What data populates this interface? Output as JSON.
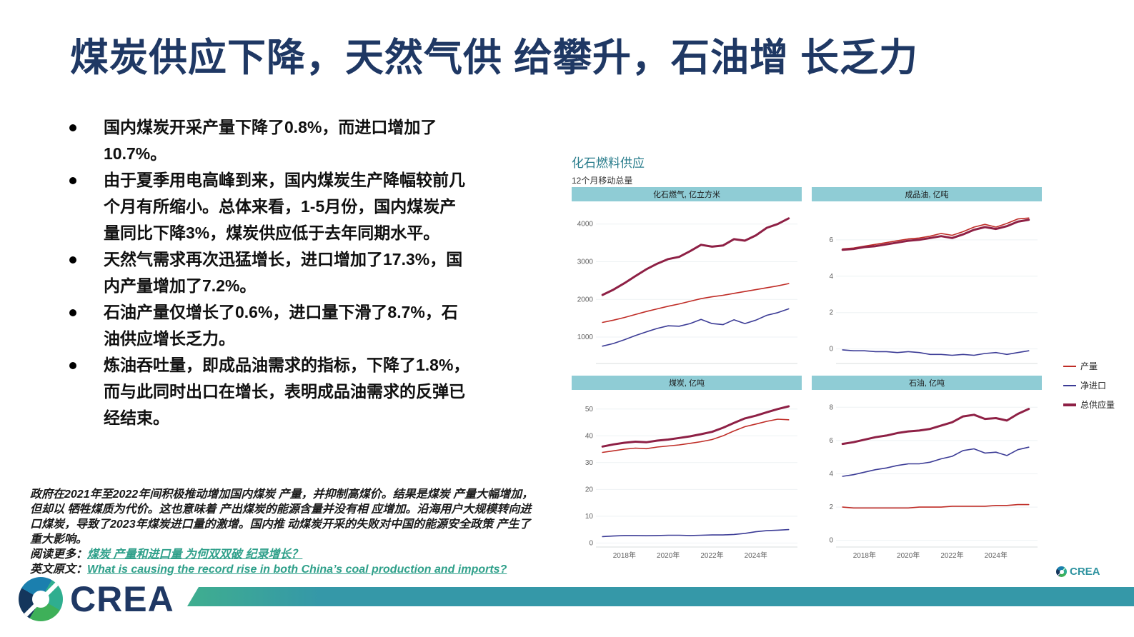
{
  "slide": {
    "title": "煤炭供应下降，天然气供 给攀升，石油增 长乏力",
    "bullets": [
      "国内煤炭开采产量下降了0.8%，而进口增加了10.7%。",
      "由于夏季用电高峰到来，国内煤炭生产降幅较前几个月有所缩小。总体来看，1-5月份，国内煤炭产量同比下降3%，煤炭供应低于去年同期水平。",
      "天然气需求再次迅猛增长，进口增加了17.3%，国内产量增加了7.2%。",
      "石油产量仅增长了0.6%，进口量下滑了8.7%，石油供应增长乏力。",
      "炼油吞吐量，即成品油需求的指标，下降了1.8%，而与此同时出口在增长，表明成品油需求的反弹已经结束。"
    ],
    "footnote": "政府在2021年至2022年间积极推动增加国内煤炭 产量，并抑制高煤价。结果是煤炭 产量大幅增加，但却以 牺牲煤质为代价。这也意味着 产出煤炭的能源含量并没有相 应增加。沿海用户大规模转向进口煤炭，导致了2023年煤炭进口量的激增。国内推 动煤炭开采的失败对中国的能源安全政策 产生了重大影响。",
    "read_more_prefix": "阅读更多：",
    "read_more_link": "煤炭 产量和进口量 为何双双破 纪录增长？",
    "english_prefix": "英文原文：",
    "english_link": "What is causing the record rise in both China’s coal production and imports?"
  },
  "figure": {
    "title": "化石燃料供应",
    "subtitle": "12个月移动总量",
    "brand": "CREA"
  },
  "legend": {
    "items": [
      {
        "label": "产量",
        "color": "#bf2c26",
        "thick": false
      },
      {
        "label": "净进口",
        "color": "#3c3c96",
        "thick": false
      },
      {
        "label": "总供应量",
        "color": "#8e2045",
        "thick": true
      }
    ]
  },
  "logo": {
    "text": "CREA"
  },
  "colors": {
    "title_navy": "#1f3864",
    "chart_title_teal": "#2a7d8c",
    "panel_header_bg": "#8fccd5",
    "link_teal": "#2fa08a",
    "banner_teal": "#3598a8",
    "production_red": "#bf2c26",
    "net_imports_blue": "#3c3c96",
    "total_supply_maroon": "#8e2045"
  },
  "chart_data": [
    {
      "type": "line",
      "title": "化石燃气, 亿立方米",
      "show_x_labels": false,
      "x": [
        2017,
        2017.5,
        2018,
        2018.5,
        2019,
        2019.5,
        2020,
        2020.5,
        2021,
        2021.5,
        2022,
        2022.5,
        2023,
        2023.5,
        2024,
        2024.5,
        2025,
        2025.5
      ],
      "xlim": [
        2016.7,
        2025.9
      ],
      "ylim": [
        300,
        4450
      ],
      "yticks": [
        1000,
        2000,
        3000,
        4000
      ],
      "xticks": [
        2018,
        2020,
        2022,
        2024
      ],
      "xtick_labels": [
        "2018年",
        "2020年",
        "2022年",
        "2024年"
      ],
      "series": [
        {
          "name": "产量",
          "color": "#bf2c26",
          "width": 1.6,
          "values": [
            1390,
            1450,
            1520,
            1600,
            1680,
            1750,
            1820,
            1880,
            1950,
            2020,
            2070,
            2110,
            2160,
            2210,
            2260,
            2310,
            2360,
            2420
          ]
        },
        {
          "name": "净进口",
          "color": "#3c3c96",
          "width": 1.6,
          "values": [
            760,
            830,
            930,
            1040,
            1140,
            1230,
            1300,
            1290,
            1360,
            1470,
            1360,
            1330,
            1460,
            1360,
            1450,
            1580,
            1650,
            1750
          ]
        },
        {
          "name": "总供应量",
          "color": "#8e2045",
          "width": 3,
          "values": [
            2120,
            2260,
            2430,
            2620,
            2800,
            2950,
            3070,
            3130,
            3280,
            3450,
            3400,
            3430,
            3600,
            3560,
            3700,
            3900,
            4000,
            4150
          ]
        }
      ]
    },
    {
      "type": "line",
      "title": "成品油, 亿吨",
      "show_x_labels": false,
      "x": [
        2017,
        2017.5,
        2018,
        2018.5,
        2019,
        2019.5,
        2020,
        2020.5,
        2021,
        2021.5,
        2022,
        2022.5,
        2023,
        2023.5,
        2024,
        2024.5,
        2025,
        2025.5
      ],
      "xlim": [
        2016.7,
        2025.9
      ],
      "ylim": [
        -0.8,
        7.8
      ],
      "yticks": [
        0,
        2,
        4,
        6
      ],
      "xticks": [
        2018,
        2020,
        2022,
        2024
      ],
      "xtick_labels": [
        "2018年",
        "2020年",
        "2022年",
        "2024年"
      ],
      "series": [
        {
          "name": "产量",
          "color": "#bf2c26",
          "width": 1.6,
          "values": [
            5.5,
            5.55,
            5.65,
            5.75,
            5.85,
            5.95,
            6.05,
            6.1,
            6.2,
            6.35,
            6.25,
            6.45,
            6.7,
            6.85,
            6.7,
            6.9,
            7.15,
            7.2
          ]
        },
        {
          "name": "净进口",
          "color": "#3c3c96",
          "width": 1.6,
          "values": [
            -0.05,
            -0.1,
            -0.1,
            -0.15,
            -0.15,
            -0.2,
            -0.15,
            -0.2,
            -0.3,
            -0.3,
            -0.35,
            -0.3,
            -0.35,
            -0.25,
            -0.2,
            -0.3,
            -0.2,
            -0.1
          ]
        },
        {
          "name": "总供应量",
          "color": "#8e2045",
          "width": 3,
          "values": [
            5.45,
            5.5,
            5.6,
            5.65,
            5.75,
            5.85,
            5.95,
            6.0,
            6.1,
            6.2,
            6.1,
            6.3,
            6.55,
            6.7,
            6.6,
            6.75,
            7.0,
            7.1
          ]
        }
      ]
    },
    {
      "type": "line",
      "title": "煤炭, 亿吨",
      "show_x_labels": true,
      "x": [
        2017,
        2017.5,
        2018,
        2018.5,
        2019,
        2019.5,
        2020,
        2020.5,
        2021,
        2021.5,
        2022,
        2022.5,
        2023,
        2023.5,
        2024,
        2024.5,
        2025,
        2025.5
      ],
      "xlim": [
        2016.7,
        2025.9
      ],
      "ylim": [
        -1.5,
        55
      ],
      "yticks": [
        0,
        10,
        20,
        30,
        40,
        50
      ],
      "xticks": [
        2018,
        2020,
        2022,
        2024
      ],
      "xtick_labels": [
        "2018年",
        "2020年",
        "2022年",
        "2024年"
      ],
      "series": [
        {
          "name": "产量",
          "color": "#bf2c26",
          "width": 1.6,
          "values": [
            33.8,
            34.4,
            35,
            35.4,
            35.2,
            35.8,
            36.2,
            36.6,
            37.2,
            37.8,
            38.6,
            40,
            41.8,
            43.4,
            44.4,
            45.4,
            46.2,
            46
          ]
        },
        {
          "name": "净进口",
          "color": "#3c3c96",
          "width": 1.6,
          "values": [
            2.4,
            2.6,
            2.8,
            2.8,
            2.7,
            2.8,
            2.9,
            2.9,
            2.8,
            2.9,
            3.0,
            3.0,
            3.2,
            3.6,
            4.2,
            4.6,
            4.8,
            5.0
          ]
        },
        {
          "name": "总供应量",
          "color": "#8e2045",
          "width": 3,
          "values": [
            36,
            36.8,
            37.4,
            37.8,
            37.6,
            38.2,
            38.6,
            39.2,
            39.8,
            40.6,
            41.5,
            43,
            44.8,
            46.5,
            47.5,
            48.8,
            50,
            51
          ]
        }
      ]
    },
    {
      "type": "line",
      "title": "石油, 亿吨",
      "show_x_labels": true,
      "x": [
        2017,
        2017.5,
        2018,
        2018.5,
        2019,
        2019.5,
        2020,
        2020.5,
        2021,
        2021.5,
        2022,
        2022.5,
        2023,
        2023.5,
        2024,
        2024.5,
        2025,
        2025.5
      ],
      "xlim": [
        2016.7,
        2025.9
      ],
      "ylim": [
        -0.4,
        8.7
      ],
      "yticks": [
        0,
        2,
        4,
        6,
        8
      ],
      "xticks": [
        2018,
        2020,
        2022,
        2024
      ],
      "xtick_labels": [
        "2018年",
        "2020年",
        "2022年",
        "2024年"
      ],
      "series": [
        {
          "name": "产量",
          "color": "#bf2c26",
          "width": 1.6,
          "values": [
            2.0,
            1.95,
            1.95,
            1.95,
            1.95,
            1.95,
            1.95,
            2.0,
            2.0,
            2.0,
            2.05,
            2.05,
            2.05,
            2.05,
            2.1,
            2.1,
            2.15,
            2.15
          ]
        },
        {
          "name": "净进口",
          "color": "#3c3c96",
          "width": 1.6,
          "values": [
            3.85,
            3.95,
            4.1,
            4.25,
            4.35,
            4.5,
            4.6,
            4.6,
            4.7,
            4.9,
            5.05,
            5.4,
            5.5,
            5.25,
            5.3,
            5.1,
            5.45,
            5.6
          ]
        },
        {
          "name": "总供应量",
          "color": "#8e2045",
          "width": 3,
          "values": [
            5.8,
            5.9,
            6.05,
            6.2,
            6.3,
            6.45,
            6.55,
            6.6,
            6.7,
            6.9,
            7.1,
            7.45,
            7.55,
            7.3,
            7.35,
            7.2,
            7.6,
            7.9
          ]
        }
      ]
    }
  ]
}
